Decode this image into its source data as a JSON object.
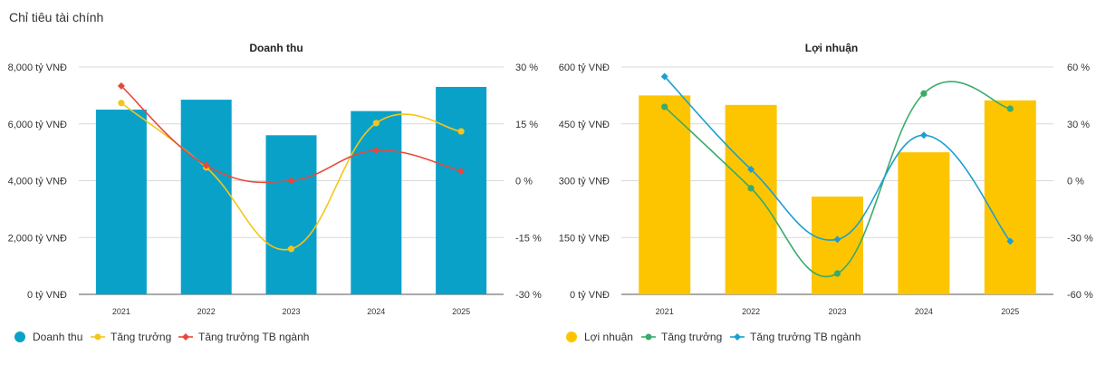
{
  "page": {
    "section_title": "Chỉ tiêu tài chính"
  },
  "chart_data": [
    {
      "type": "bar",
      "title": "Doanh thu",
      "categories": [
        "2021",
        "2022",
        "2023",
        "2024",
        "2025"
      ],
      "bar_series": {
        "name": "Doanh thu",
        "values": [
          6500,
          6850,
          5600,
          6450,
          7300
        ],
        "color": "#0aa1c9"
      },
      "line_series": [
        {
          "name": "Tăng trưởng",
          "values": [
            20.5,
            3.5,
            -18,
            15.2,
            13
          ],
          "color": "#f5c518",
          "shape": "circle"
        },
        {
          "name": "Tăng trưởng TB ngành",
          "values": [
            25,
            4,
            0,
            8,
            2.5
          ],
          "color": "#e8483a",
          "shape": "diamond"
        }
      ],
      "y_left": {
        "min": 0,
        "max": 8000,
        "ticks": [
          0,
          2000,
          4000,
          6000,
          8000
        ],
        "labels": [
          "0 tỷ VNĐ",
          "2,000 tỷ VNĐ",
          "4,000 tỷ VNĐ",
          "6,000 tỷ VNĐ",
          "8,000 tỷ VNĐ"
        ]
      },
      "y_right": {
        "min": -30,
        "max": 30,
        "ticks": [
          -30,
          -15,
          0,
          15,
          30
        ],
        "labels": [
          "-30 %",
          "-15 %",
          "0 %",
          "15 %",
          "30 %"
        ]
      },
      "legend": [
        "Doanh thu",
        "Tăng trưởng",
        "Tăng trưởng TB ngành"
      ]
    },
    {
      "type": "bar",
      "title": "Lợi nhuận",
      "categories": [
        "2021",
        "2022",
        "2023",
        "2024",
        "2025"
      ],
      "bar_series": {
        "name": "Lợi nhuận",
        "values": [
          525,
          500,
          258,
          375,
          512
        ],
        "color": "#fdc500"
      },
      "line_series": [
        {
          "name": "Tăng trưởng",
          "values": [
            39,
            -4,
            -49,
            46,
            38
          ],
          "color": "#3aab6b",
          "shape": "circle"
        },
        {
          "name": "Tăng trưởng TB ngành",
          "values": [
            55,
            6,
            -31,
            24,
            -32
          ],
          "color": "#1c9fd0",
          "shape": "diamond"
        }
      ],
      "y_left": {
        "min": 0,
        "max": 600,
        "ticks": [
          0,
          150,
          300,
          450,
          600
        ],
        "labels": [
          "0 tỷ VNĐ",
          "150 tỷ VNĐ",
          "300 tỷ VNĐ",
          "450 tỷ VNĐ",
          "600 tỷ VNĐ"
        ]
      },
      "y_right": {
        "min": -60,
        "max": 60,
        "ticks": [
          -60,
          -30,
          0,
          30,
          60
        ],
        "labels": [
          "-60 %",
          "-30 %",
          "0 %",
          "30 %",
          "60 %"
        ]
      },
      "legend": [
        "Lợi nhuận",
        "Tăng trưởng",
        "Tăng trưởng TB ngành"
      ]
    }
  ]
}
